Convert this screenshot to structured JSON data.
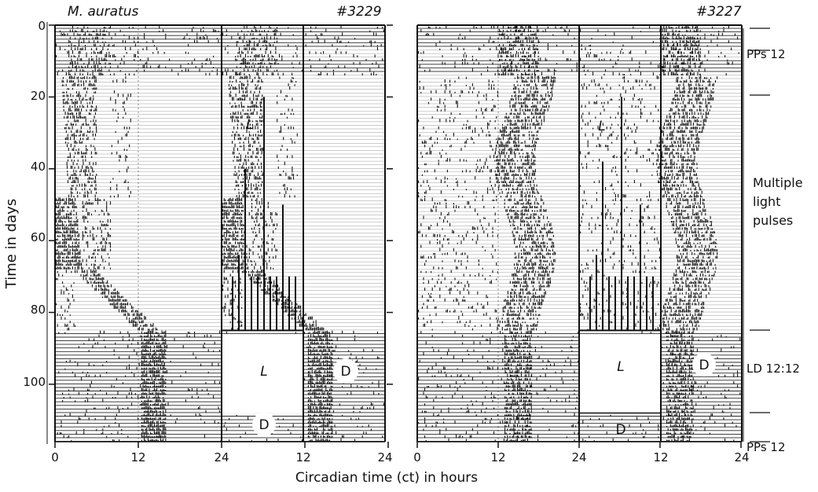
{
  "figure": {
    "xlabel": "Circadian time (ct) in hours",
    "ylabel": "Time in days"
  },
  "colors": {
    "ink": "#111111",
    "paper": "#ffffff"
  },
  "chart_data": [
    {
      "type": "actogram",
      "species": "M. auratus",
      "id": "#3229",
      "xticks": [
        "0",
        "12",
        "24",
        "12",
        "24"
      ],
      "yticks": [
        "0",
        "20",
        "40",
        "60",
        "80",
        "100"
      ],
      "ylim": [
        0,
        116
      ],
      "bar_labels": [
        "L",
        "D"
      ],
      "dark_region_days": [
        85,
        116
      ],
      "pulse_label": "L"
    },
    {
      "type": "actogram",
      "id": "#3227",
      "xticks": [
        "0",
        "12",
        "24",
        "12",
        "24"
      ],
      "ylim": [
        0,
        116
      ],
      "bar_labels": [
        "L",
        "D"
      ],
      "pulse_label": "L",
      "conditions": [
        {
          "label": "PPs 12",
          "day": 8
        },
        {
          "label": "Multiple light pulses",
          "lines": [
            "Multiple",
            "light",
            "pulses"
          ],
          "day_from": 20,
          "day_to": 85
        },
        {
          "label": "LD 12:12",
          "day": 95
        },
        {
          "label": "PPs 12",
          "day": 110
        }
      ]
    }
  ]
}
